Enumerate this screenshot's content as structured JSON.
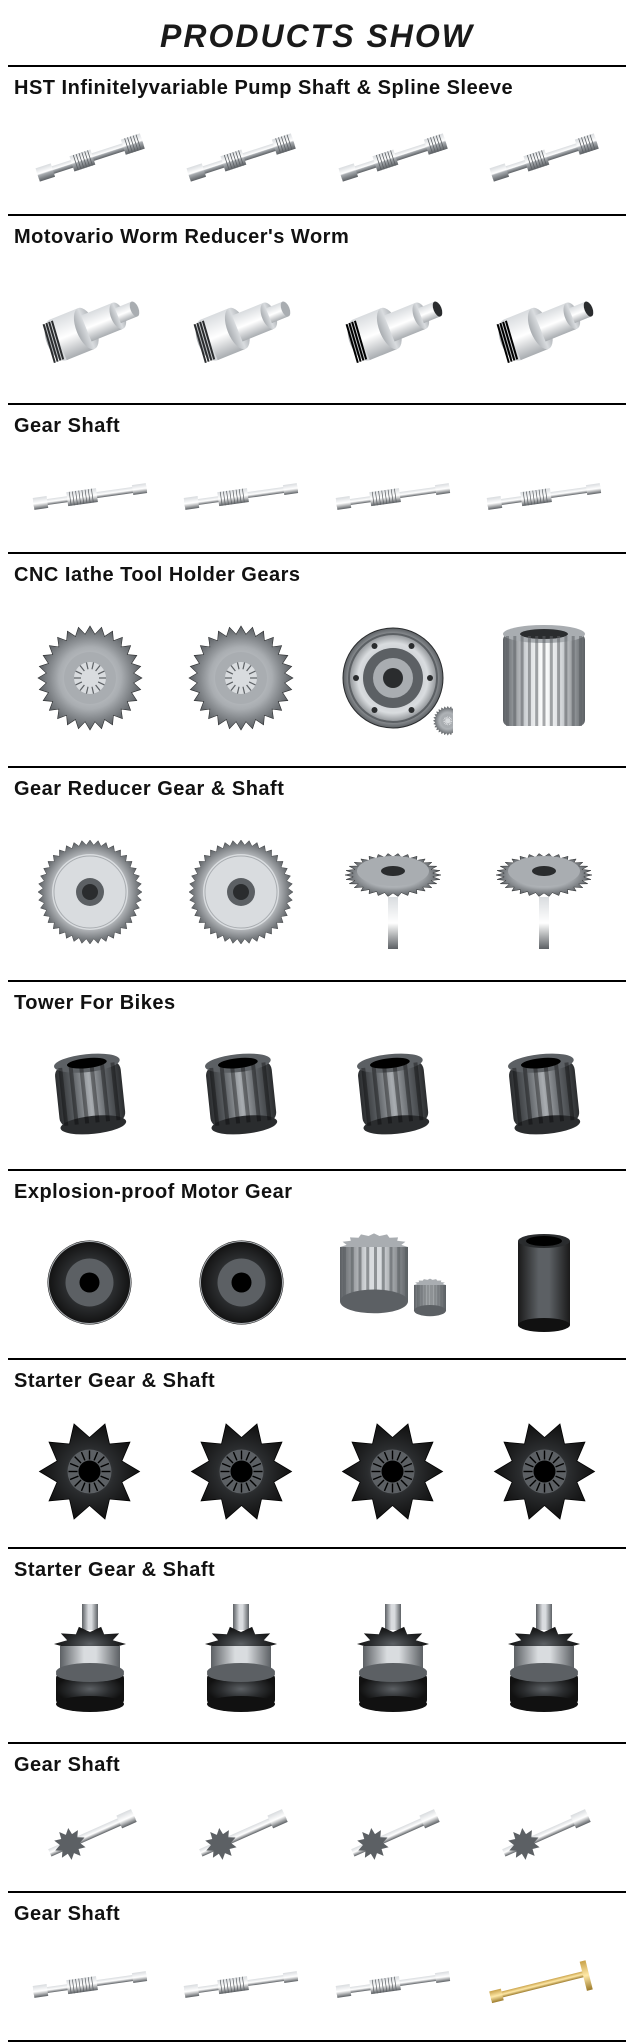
{
  "title": "PRODUCTS SHOW",
  "palette": {
    "steel_light": "#d9dcdf",
    "steel_mid": "#a9adb1",
    "steel_dark": "#5c6064",
    "steel_black": "#2a2c2e",
    "brass": "#c9a24a",
    "brass_dark": "#9c7a2a"
  },
  "sections": [
    {
      "title": "HST Infinitelyvariable Pump Shaft & Spline Sleeve",
      "row_class": "short",
      "items": [
        "shaft-diag",
        "shaft-diag",
        "shaft-diag",
        "shaft-diag"
      ]
    },
    {
      "title": "Motovario Worm Reducer's Worm",
      "row_class": "",
      "items": [
        "worm-stub",
        "worm-stub",
        "worm-stub-dark",
        "worm-stub-dark"
      ]
    },
    {
      "title": "Gear Shaft",
      "row_class": "short",
      "items": [
        "slim-shaft",
        "slim-shaft",
        "slim-shaft",
        "slim-shaft"
      ]
    },
    {
      "title": "CNC Iathe Tool Holder  Gears",
      "row_class": "tall",
      "items": [
        "spur-gear",
        "spur-gear",
        "ring-gear",
        "spline-sleeve"
      ]
    },
    {
      "title": "Gear Reducer Gear & Shaft",
      "row_class": "tall",
      "items": [
        "helical-gear",
        "helical-gear",
        "gear-on-shaft",
        "gear-on-shaft"
      ]
    },
    {
      "title": "Tower For Bikes",
      "row_class": "",
      "items": [
        "hub-body",
        "hub-body",
        "hub-body",
        "hub-body"
      ]
    },
    {
      "title": "Explosion-proof Motor Gear",
      "row_class": "",
      "items": [
        "disc-gear",
        "disc-gear",
        "pinion-pair",
        "bushing"
      ]
    },
    {
      "title": "Starter Gear & Shaft",
      "row_class": "",
      "items": [
        "starter-pinion",
        "starter-pinion",
        "starter-pinion",
        "starter-pinion"
      ]
    },
    {
      "title": "Starter Gear & Shaft",
      "row_class": "",
      "items": [
        "bendix",
        "bendix",
        "bendix",
        "bendix"
      ]
    },
    {
      "title": "Gear Shaft",
      "row_class": "short",
      "items": [
        "gear-shaft-small",
        "gear-shaft-small",
        "gear-shaft-small",
        "gear-shaft-small"
      ]
    },
    {
      "title": "Gear Shaft",
      "row_class": "short",
      "items": [
        "slim-shaft",
        "slim-shaft",
        "slim-shaft",
        "brass-shaft"
      ]
    }
  ]
}
